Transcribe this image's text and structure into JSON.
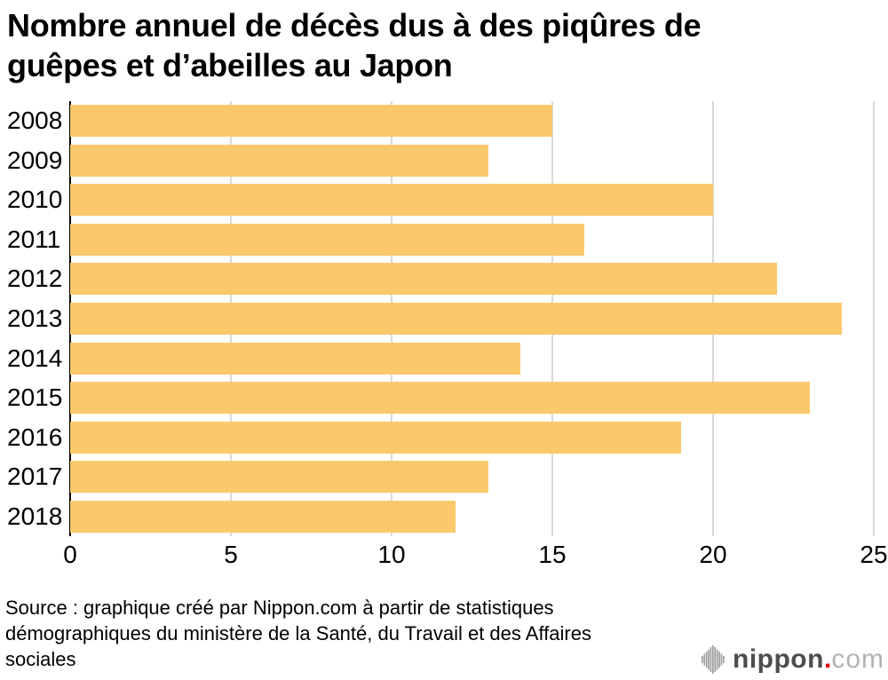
{
  "chart_data": {
    "type": "bar",
    "orientation": "horizontal",
    "title": "Nombre annuel de décès dus à des piqûres de guêpes et d’abeilles au Japon",
    "categories": [
      "2008",
      "2009",
      "2010",
      "2011",
      "2012",
      "2013",
      "2014",
      "2015",
      "2016",
      "2017",
      "2018"
    ],
    "values": [
      15,
      13,
      20,
      16,
      22,
      24,
      14,
      23,
      19,
      13,
      12
    ],
    "xlabel": "",
    "ylabel": "",
    "xlim": [
      0,
      25
    ],
    "xticks": [
      0,
      5,
      10,
      15,
      20,
      25
    ],
    "grid": true,
    "legend": false
  },
  "source": {
    "text": "Source : graphique créé par Nippon.com à partir de statistiques démographiques du ministère de la Santé, du Travail et des Affaires sociales"
  },
  "logo": {
    "brand": "nippon",
    "dot": ".",
    "tld": "com"
  },
  "colors": {
    "bar-fill": "#fbc96c",
    "grid-color": "#d9d9d9",
    "axis-color": "#000000",
    "logo-brand-color": "#4d4d4d",
    "logo-dot-color": "#e60012",
    "logo-tld-color": "#b3b3b3"
  }
}
